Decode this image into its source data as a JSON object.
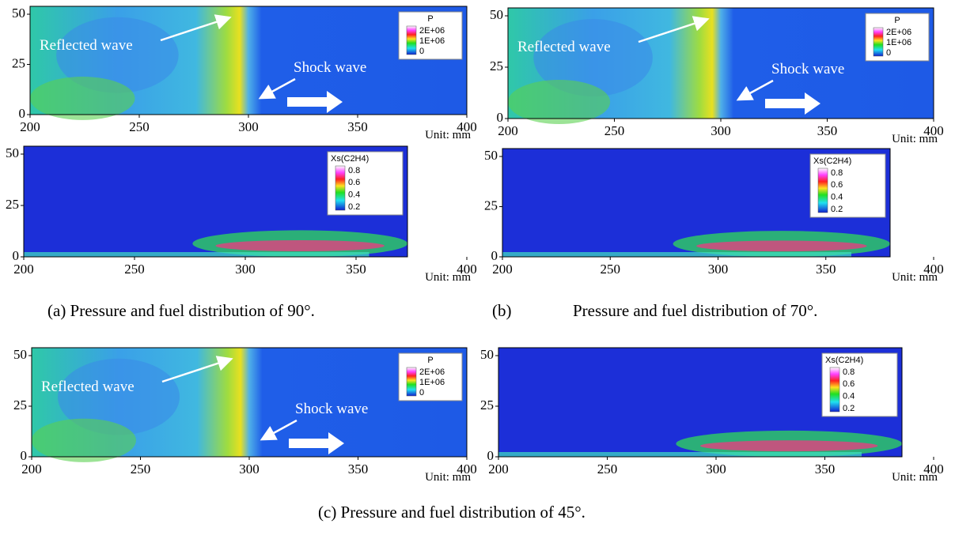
{
  "panels": [
    {
      "kind": "P",
      "legend": {
        "title": "P",
        "labels": [
          "2E+06",
          "1E+06",
          "0"
        ]
      },
      "annotations": [
        "Reflected wave",
        "Shock wave"
      ],
      "yticks": [
        0,
        25,
        50
      ],
      "xticks": [
        200,
        250,
        300,
        350,
        400
      ],
      "unit": "Unit: mm"
    },
    {
      "kind": "Xs",
      "legend": {
        "title": "Xs(C2H4)",
        "labels": [
          "0.8",
          "0.6",
          "0.4",
          "0.2"
        ]
      },
      "yticks": [
        0,
        25,
        50
      ],
      "xticks": [
        200,
        250,
        300,
        350,
        400
      ],
      "unit": "Unit: mm"
    },
    {
      "kind": "P",
      "legend": {
        "title": "P",
        "labels": [
          "2E+06",
          "1E+06",
          "0"
        ]
      },
      "annotations": [
        "Reflected wave",
        "Shock wave"
      ],
      "yticks": [
        0,
        25,
        50
      ],
      "xticks": [
        200,
        250,
        300,
        350,
        400
      ],
      "unit": "Unit: mm"
    },
    {
      "kind": "Xs",
      "legend": {
        "title": "Xs(C2H4)",
        "labels": [
          "0.8",
          "0.6",
          "0.4",
          "0.2"
        ]
      },
      "yticks": [
        0,
        25,
        50
      ],
      "xticks": [
        200,
        250,
        300,
        350,
        400
      ],
      "unit": "Unit: mm"
    },
    {
      "kind": "P",
      "legend": {
        "title": "P",
        "labels": [
          "2E+06",
          "1E+06",
          "0"
        ]
      },
      "annotations": [
        "Reflected wave",
        "Shock wave"
      ],
      "yticks": [
        0,
        25,
        50
      ],
      "xticks": [
        200,
        250,
        300,
        350,
        400
      ],
      "unit": "Unit: mm"
    },
    {
      "kind": "Xs",
      "legend": {
        "title": "Xs(C2H4)",
        "labels": [
          "0.8",
          "0.6",
          "0.4",
          "0.2"
        ]
      },
      "yticks": [
        0,
        25,
        50
      ],
      "xticks": [
        200,
        250,
        300,
        350,
        400
      ],
      "unit": "Unit: mm"
    }
  ],
  "captions": [
    "(a) Pressure and fuel distribution of 90°.",
    "(b)",
    "Pressure and fuel distribution of 70°.",
    "(c) Pressure and fuel distribution of 45°."
  ]
}
